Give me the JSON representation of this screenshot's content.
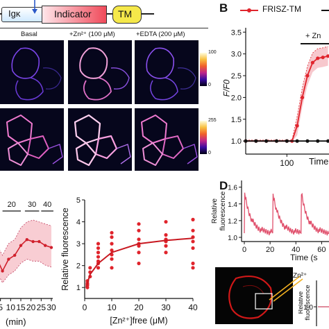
{
  "panel_a": {
    "construct": [
      "Igκ",
      "Indicator",
      "TM"
    ],
    "conditions": [
      "Basal",
      "+Zn²⁺ (100 μM)",
      "+EDTA (200 μM)"
    ],
    "colorbar_1": {
      "max": "100",
      "min": "0"
    },
    "colorbar_2": {
      "max": "255",
      "min": "0"
    }
  },
  "panel_b": {
    "letter": "B",
    "legend": "FRISZ-TM",
    "annotation": "+ Zn",
    "ylabel": "F/F0",
    "xlabel": "Time",
    "xticks": [
      "100"
    ],
    "yticks": [
      "1.0",
      "1.5",
      "2.0",
      "2.5",
      "3.0",
      "3.5"
    ]
  },
  "panel_c": {
    "xlabel": "(min)",
    "xticks": [
      "5",
      "10",
      "15",
      "20",
      "25",
      "30"
    ],
    "conc_labels": [
      "20",
      "30",
      "40"
    ]
  },
  "panel_c2": {
    "ylabel": "Relative fluorescence",
    "xlabel": "[Zn²⁺]free (μM)",
    "xticks": [
      "0",
      "10",
      "20",
      "30",
      "40"
    ],
    "yticks": [
      "1",
      "2",
      "3",
      "4",
      "5"
    ]
  },
  "panel_d": {
    "letter": "D",
    "ylabel": "Relative fluorescence",
    "xlabel": "Time (s",
    "xticks": [
      "0",
      "20",
      "40",
      "60"
    ],
    "yticks": [
      "1.0",
      "1.2",
      "1.4",
      "1.6"
    ],
    "inset_label": "Zn²⁺",
    "small_ylabel": "Relative fluorescence",
    "small_ytick": "1.0"
  },
  "chart_data": [
    {
      "type": "line",
      "panel": "B",
      "ylabel": "F/F0",
      "xlabel": "Time",
      "ylim": [
        0.7,
        3.6
      ],
      "series": [
        {
          "name": "FRISZ-TM",
          "color": "#e0242c",
          "x": [
            60,
            70,
            80,
            90,
            100,
            105,
            110,
            115,
            120,
            125,
            130,
            135,
            140
          ],
          "y": [
            1.0,
            1.0,
            1.0,
            1.0,
            1.0,
            1.0,
            1.35,
            2.0,
            2.5,
            2.8,
            2.9,
            2.92,
            2.95
          ]
        },
        {
          "color": "#111111",
          "x": [
            60,
            70,
            80,
            90,
            100,
            110,
            120,
            130,
            140
          ],
          "y": [
            1.0,
            1.0,
            1.0,
            1.0,
            1.0,
            1.0,
            1.0,
            1.0,
            1.0
          ]
        }
      ]
    },
    {
      "type": "line",
      "panel": "C-left",
      "xlabel": "(min)",
      "x": [
        0,
        3,
        6,
        9,
        12,
        15,
        18,
        21,
        24,
        27,
        30
      ],
      "y": [
        2.5,
        2.55,
        2.2,
        2.5,
        2.6,
        2.85,
        3.0,
        2.95,
        2.95,
        2.85,
        2.8
      ],
      "band_low": [
        2.2,
        2.2,
        1.9,
        2.1,
        2.2,
        2.4,
        2.5,
        2.45,
        2.45,
        2.35,
        2.3
      ],
      "band_high": [
        2.8,
        2.9,
        2.6,
        2.9,
        3.0,
        3.3,
        3.45,
        3.5,
        3.45,
        3.4,
        3.35
      ]
    },
    {
      "type": "scatter",
      "panel": "C-right",
      "ylabel": "Relative fluorescence",
      "xlabel": "[Zn²⁺]free (μM)",
      "xlim": [
        0,
        40
      ],
      "ylim": [
        0.5,
        5
      ],
      "points": [
        [
          1,
          1.0
        ],
        [
          1,
          1.1
        ],
        [
          1,
          1.15
        ],
        [
          1,
          1.2
        ],
        [
          1,
          1.3
        ],
        [
          2,
          1.5
        ],
        [
          2,
          1.7
        ],
        [
          2,
          1.9
        ],
        [
          5,
          1.9
        ],
        [
          5,
          2.1
        ],
        [
          5,
          2.2
        ],
        [
          5,
          2.4
        ],
        [
          5,
          2.6
        ],
        [
          5,
          2.8
        ],
        [
          5,
          3.0
        ],
        [
          10,
          1.9
        ],
        [
          10,
          2.3
        ],
        [
          10,
          2.5
        ],
        [
          10,
          2.7
        ],
        [
          10,
          3.0
        ],
        [
          10,
          3.3
        ],
        [
          10,
          3.5
        ],
        [
          20,
          2.1
        ],
        [
          20,
          2.6
        ],
        [
          20,
          2.9
        ],
        [
          20,
          3.0
        ],
        [
          20,
          3.2
        ],
        [
          20,
          3.6
        ],
        [
          20,
          3.9
        ],
        [
          30,
          2.6
        ],
        [
          30,
          2.9
        ],
        [
          30,
          3.1
        ],
        [
          30,
          3.2
        ],
        [
          30,
          3.4
        ],
        [
          30,
          4.0
        ],
        [
          40,
          1.9
        ],
        [
          40,
          2.1
        ],
        [
          40,
          2.8
        ],
        [
          40,
          3.1
        ],
        [
          40,
          3.3
        ],
        [
          40,
          3.6
        ],
        [
          40,
          4.1
        ]
      ],
      "fit": {
        "x": [
          0.5,
          2,
          5,
          10,
          20,
          30,
          40
        ],
        "y": [
          1.0,
          1.6,
          2.1,
          2.6,
          3.0,
          3.15,
          3.25
        ]
      }
    },
    {
      "type": "line",
      "panel": "D",
      "ylabel": "Relative fluorescence",
      "xlabel": "Time (s",
      "xlim": [
        0,
        70
      ],
      "ylim": [
        0.95,
        1.68
      ],
      "pulse_times": [
        0,
        22,
        44,
        66
      ],
      "peak": 1.55,
      "baseline": 1.05
    }
  ]
}
